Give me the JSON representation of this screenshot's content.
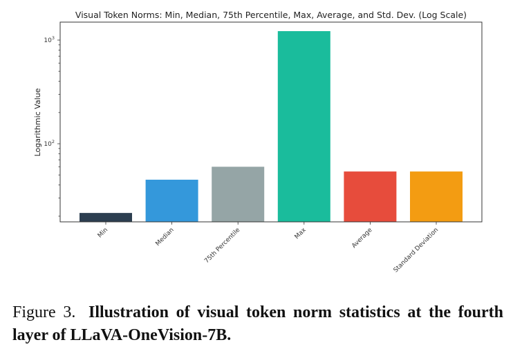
{
  "chart_data": {
    "type": "bar",
    "title": "Visual Token Norms: Min, Median, 75th Percentile, Max, Average, and Std. Dev. (Log Scale)",
    "xlabel": "",
    "ylabel": "Logarithmic Value",
    "yscale": "log",
    "ylim": [
      17.7,
      1400
    ],
    "yticks": [
      {
        "value": 100,
        "label_base": "10",
        "label_exp": "2"
      },
      {
        "value": 1000,
        "label_base": "10",
        "label_exp": "3"
      }
    ],
    "categories": [
      "Min",
      "Median",
      "75th Percentile",
      "Max",
      "Average",
      "Standard Deviation"
    ],
    "values": [
      21.5,
      45,
      60,
      1220,
      54,
      54
    ],
    "colors": [
      "#2c3e50",
      "#3498db",
      "#95a5a6",
      "#1abc9c",
      "#e74c3c",
      "#f39c12"
    ],
    "grid": false,
    "legend": "none",
    "xtick_rotation": 45
  },
  "caption": {
    "figure_label": "Figure 3.",
    "text": "Illustration of visual token norm statistics at the fourth layer of LLaVA-OneVision-7B."
  }
}
